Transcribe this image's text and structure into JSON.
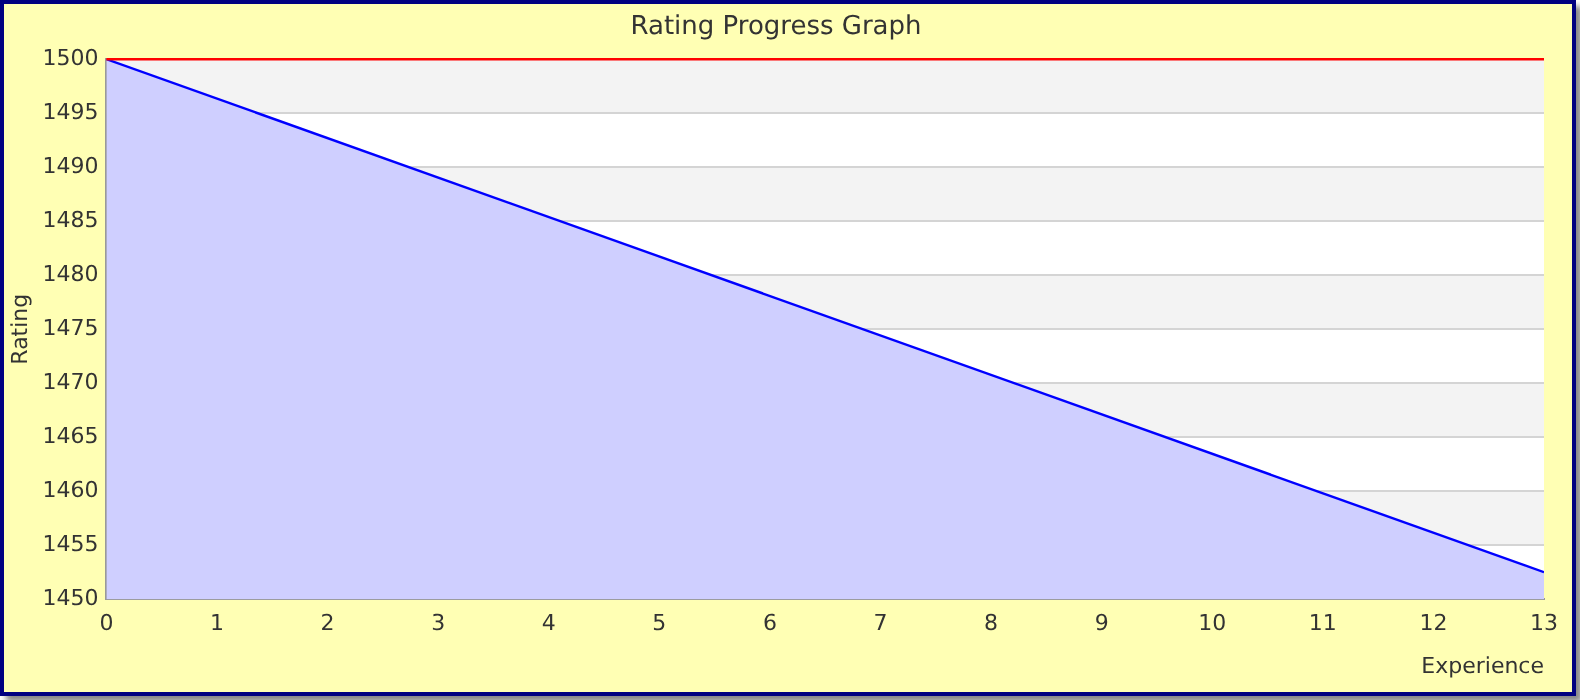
{
  "chart_data": {
    "type": "area",
    "title": "Rating Progress Graph",
    "xlabel": "Experience",
    "ylabel": "Rating",
    "x": [
      0,
      13
    ],
    "series": [
      {
        "color": "#0000ff",
        "values": [
          1500,
          1452.5
        ]
      }
    ],
    "xlim": [
      0,
      13
    ],
    "xticks": [
      0,
      1,
      2,
      3,
      4,
      5,
      6,
      7,
      8,
      9,
      10,
      11,
      12,
      13
    ],
    "ylim": [
      1450,
      1500
    ],
    "yticks": [
      1450,
      1455,
      1460,
      1465,
      1470,
      1475,
      1480,
      1485,
      1490,
      1495,
      1500
    ],
    "ref_lines": [
      {
        "axis": "y",
        "value": 1500,
        "color": "#ff0000"
      }
    ],
    "grid": "y",
    "legend": false,
    "marker": "none"
  }
}
